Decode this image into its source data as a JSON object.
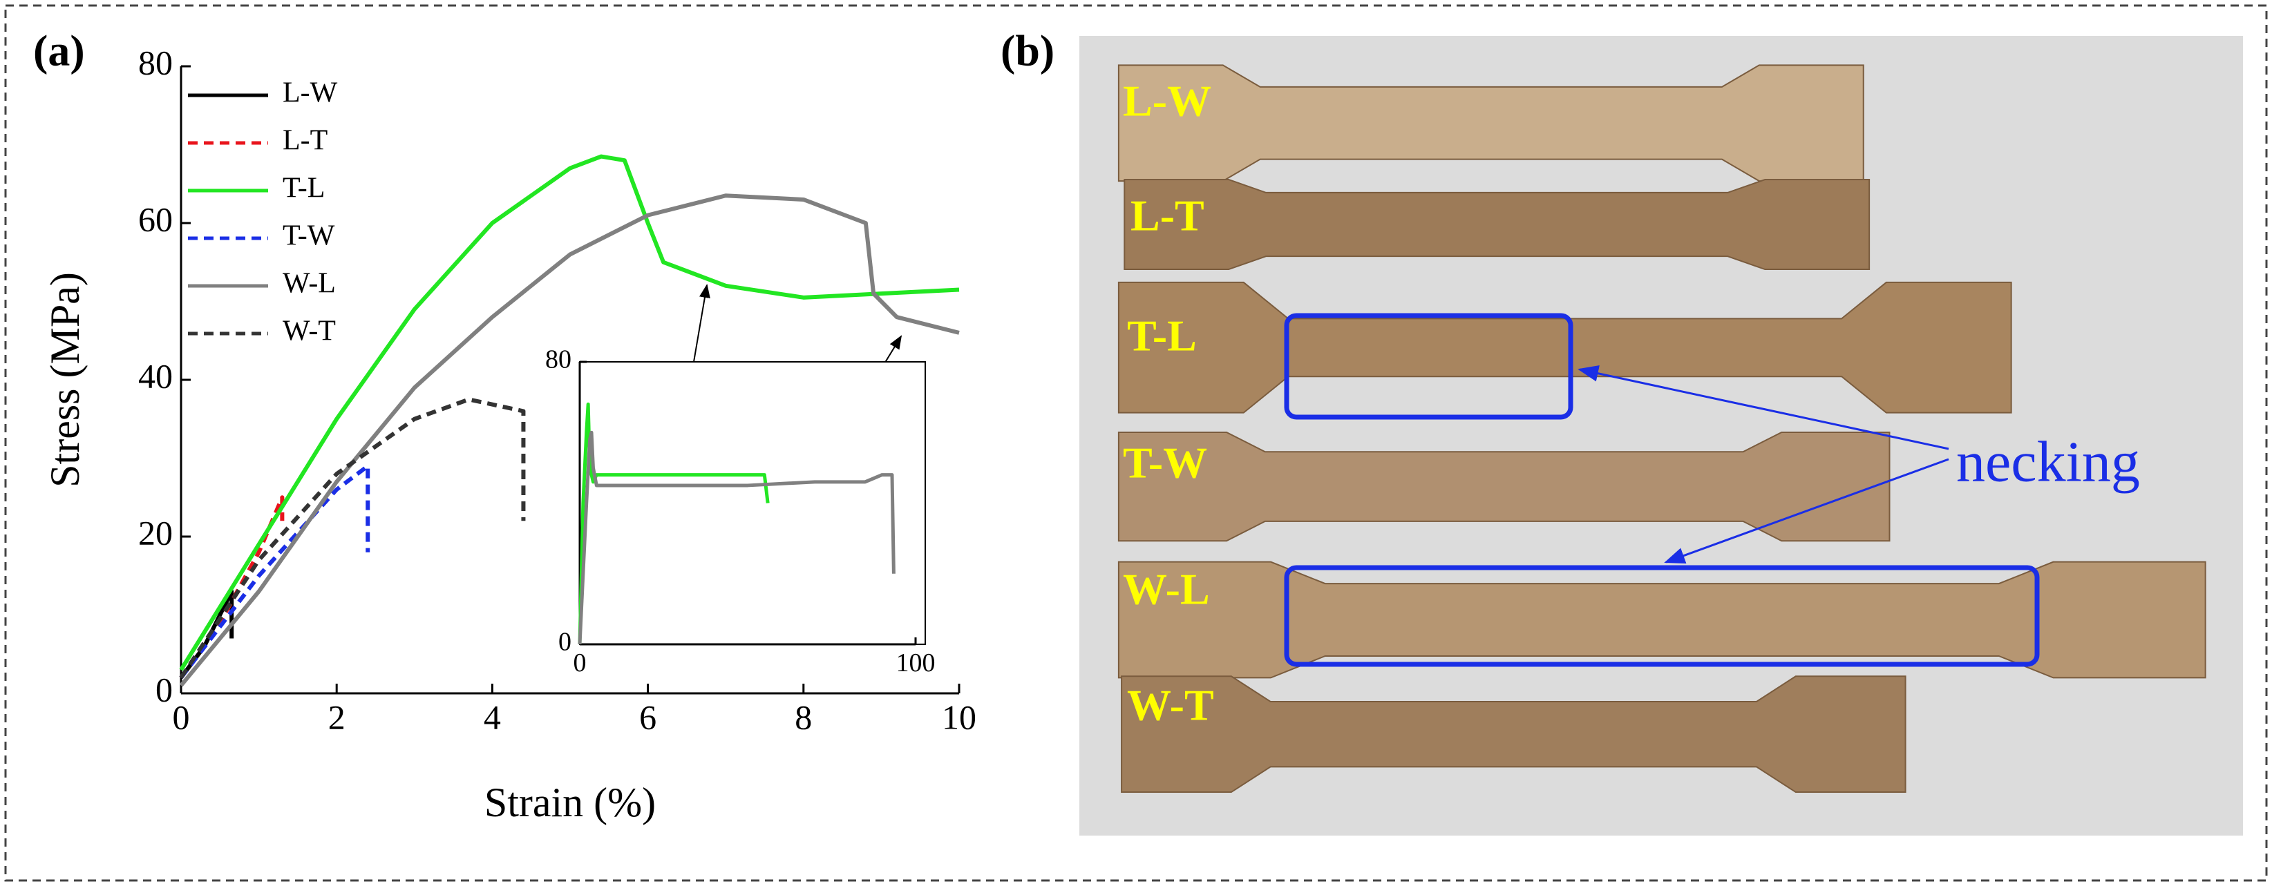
{
  "panels": [
    "(a)",
    "(b)"
  ],
  "photo": {
    "labels": [
      "L-W",
      "L-T",
      "T-L",
      "T-W",
      "W-L",
      "W-T"
    ],
    "annotation": "necking"
  },
  "chart_data": [
    {
      "type": "line",
      "xlabel": "Strain (%)",
      "ylabel": "Stress (MPa)",
      "xlim": [
        0,
        10
      ],
      "ylim": [
        0,
        80
      ],
      "xticks": [
        0,
        2,
        4,
        6,
        8,
        10
      ],
      "yticks": [
        0,
        20,
        40,
        60,
        80
      ],
      "series": [
        {
          "name": "L-W",
          "color": "#000000",
          "dash": false,
          "x": [
            0,
            0.3,
            0.65,
            0.65
          ],
          "values": [
            2,
            6,
            13,
            7
          ]
        },
        {
          "name": "L-T",
          "color": "#e8141c",
          "dash": true,
          "x": [
            0,
            0.5,
            1,
            1.3,
            1.3
          ],
          "values": [
            2,
            9,
            18,
            25,
            22
          ]
        },
        {
          "name": "T-L",
          "color": "#22e622",
          "dash": false,
          "x": [
            0,
            1,
            2,
            3,
            4,
            5,
            5.4,
            5.7,
            6,
            6.2,
            7,
            8,
            9,
            10
          ],
          "values": [
            3,
            19,
            35,
            49,
            60,
            67,
            68.5,
            68,
            60,
            55,
            52,
            50.5,
            51,
            51.5
          ]
        },
        {
          "name": "T-W",
          "color": "#1a2ee6",
          "dash": true,
          "x": [
            0,
            1,
            2,
            2.4,
            2.4
          ],
          "values": [
            2,
            15,
            26,
            29,
            18
          ]
        },
        {
          "name": "W-L",
          "color": "#808080",
          "dash": false,
          "x": [
            0,
            1,
            2,
            3,
            4,
            5,
            6,
            7,
            8,
            8.8,
            8.9,
            9.2,
            10
          ],
          "values": [
            1,
            13,
            27,
            39,
            48,
            56,
            61,
            63.5,
            63,
            60,
            51,
            48,
            46
          ]
        },
        {
          "name": "W-T",
          "color": "#333333",
          "dash": true,
          "x": [
            0,
            1,
            2,
            3,
            3.7,
            4.4,
            4.4
          ],
          "values": [
            2,
            17,
            28,
            35,
            37.5,
            36,
            22
          ]
        }
      ]
    },
    {
      "type": "line",
      "xlim": [
        0,
        100
      ],
      "ylim": [
        0,
        80
      ],
      "xticks": [
        0,
        100
      ],
      "yticks": [
        0,
        80
      ],
      "series": [
        {
          "name": "T-L",
          "color": "#22e622",
          "x": [
            0,
            1,
            2,
            2.5,
            3,
            4,
            5,
            20,
            40,
            55,
            56
          ],
          "values": [
            0,
            40,
            60,
            68,
            50,
            46,
            48,
            48,
            48,
            48,
            40
          ]
        },
        {
          "name": "W-L",
          "color": "#808080",
          "x": [
            0,
            2,
            3,
            3.5,
            4,
            5,
            30,
            50,
            70,
            85,
            90,
            93,
            93.5
          ],
          "values": [
            0,
            40,
            58,
            60,
            50,
            45,
            45,
            45,
            46,
            46,
            48,
            48,
            20
          ]
        }
      ]
    }
  ]
}
